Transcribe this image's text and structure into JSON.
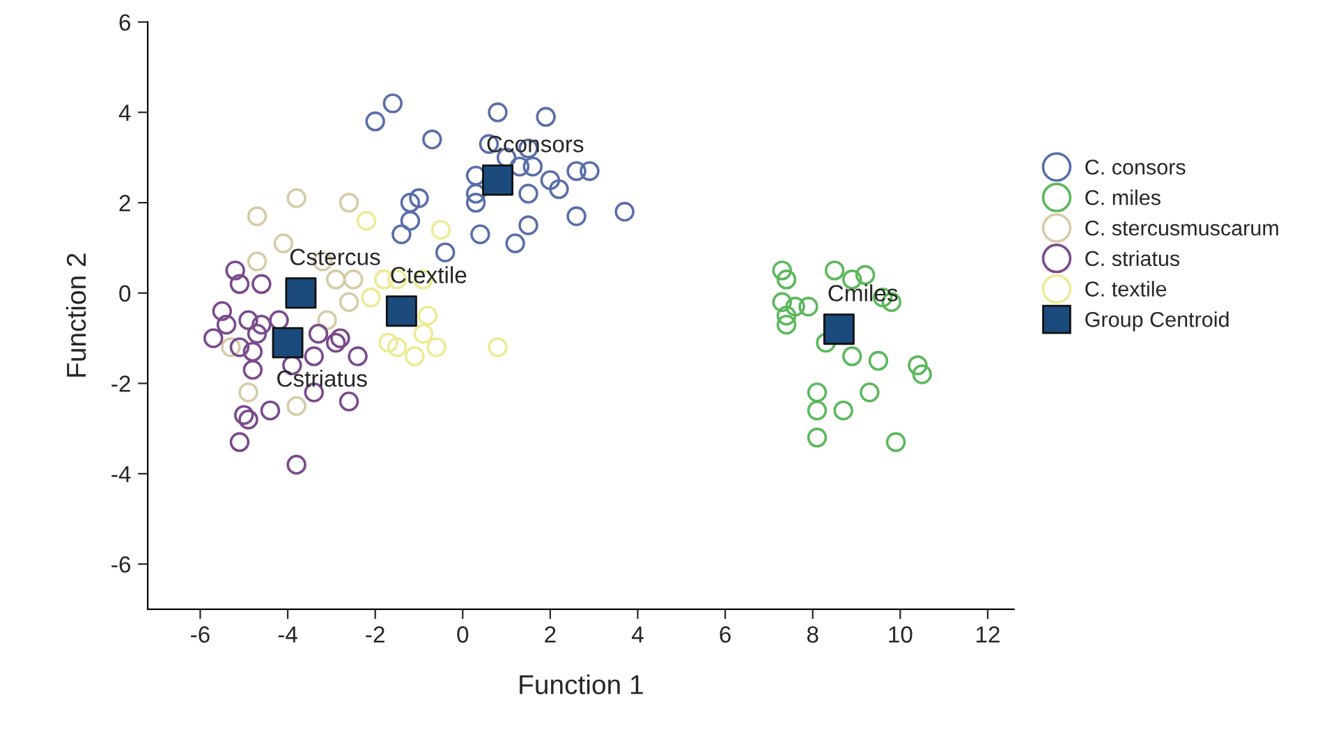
{
  "chart_data": {
    "type": "scatter",
    "xlabel": "Function 1",
    "ylabel": "Function 2",
    "xlim": [
      -7.2,
      12.6
    ],
    "ylim": [
      -7,
      6
    ],
    "xticks": [
      -6,
      -4,
      -2,
      0,
      2,
      4,
      6,
      8,
      10,
      12
    ],
    "yticks": [
      -6,
      -4,
      -2,
      0,
      2,
      4,
      6
    ],
    "grid": false,
    "legend": "right",
    "marker": "circle",
    "series": [
      {
        "name": "C. consors",
        "color": "#5a6ea8",
        "x": [
          -2.0,
          -1.6,
          -0.7,
          0.8,
          1.9,
          -1.2,
          -1.0,
          -1.2,
          -1.4,
          -0.4,
          0.3,
          0.3,
          0.3,
          0.4,
          0.6,
          1.0,
          1.3,
          1.5,
          1.6,
          1.5,
          1.5,
          1.2,
          2.0,
          2.2,
          2.6,
          2.9,
          2.6,
          3.7
        ],
        "values": [
          3.8,
          4.2,
          3.4,
          4.0,
          3.9,
          2.0,
          2.1,
          1.6,
          1.3,
          0.9,
          2.6,
          2.2,
          2.0,
          1.3,
          3.3,
          3.0,
          2.8,
          3.2,
          2.8,
          2.2,
          1.5,
          1.1,
          2.5,
          2.3,
          2.7,
          2.7,
          1.7,
          1.8
        ]
      },
      {
        "name": "C. miles",
        "color": "#5cb85c",
        "x": [
          7.3,
          7.4,
          7.3,
          7.4,
          7.4,
          7.6,
          7.9,
          8.5,
          8.9,
          9.2,
          9.6,
          9.8,
          8.3,
          8.9,
          9.5,
          9.3,
          10.4,
          10.5,
          8.1,
          8.1,
          8.7,
          8.1,
          9.9
        ],
        "values": [
          0.5,
          0.3,
          -0.2,
          -0.5,
          -0.7,
          -0.3,
          -0.3,
          0.5,
          0.3,
          0.4,
          -0.1,
          -0.2,
          -1.1,
          -1.4,
          -1.5,
          -2.2,
          -1.6,
          -1.8,
          -2.2,
          -2.6,
          -2.6,
          -3.2,
          -3.3
        ]
      },
      {
        "name": "C. stercusmuscarum",
        "color": "#d6cba8",
        "x": [
          -4.7,
          -3.8,
          -2.6,
          -4.7,
          -4.1,
          -3.2,
          -2.9,
          -2.5,
          -2.6,
          -5.3,
          -4.9,
          -3.8,
          -3.1
        ],
        "values": [
          1.7,
          2.1,
          2.0,
          0.7,
          1.1,
          0.7,
          0.3,
          0.3,
          -0.2,
          -1.2,
          -2.2,
          -2.5,
          -0.6
        ]
      },
      {
        "name": "C. striatus",
        "color": "#7a4a8c",
        "x": [
          -5.2,
          -5.1,
          -4.6,
          -5.5,
          -5.7,
          -5.4,
          -5.3,
          -5.0,
          -4.9,
          -4.7,
          -4.8,
          -4.8,
          -5.1,
          -4.9,
          -5.0,
          -4.4,
          -5.1,
          -3.8,
          -4.6,
          -4.2,
          -3.3,
          -3.4,
          -3.4,
          -2.9,
          -2.6,
          -2.8,
          -2.4,
          -3.9
        ],
        "values": [
          0.5,
          0.2,
          0.2,
          -0.4,
          -1.0,
          -0.7,
          null,
          null,
          -0.6,
          -0.9,
          -1.3,
          -1.7,
          -1.2,
          -2.8,
          -2.7,
          -2.6,
          -3.3,
          -3.8,
          -0.7,
          -0.6,
          -0.9,
          -1.4,
          -2.2,
          -1.1,
          -2.4,
          -1.0,
          -1.4,
          -1.6
        ]
      },
      {
        "name": "C. textile",
        "color": "#eeea96",
        "x": [
          -2.2,
          -0.5,
          -1.8,
          -1.5,
          -1.1,
          -0.8,
          -0.9,
          -0.6,
          -1.5,
          -1.1,
          -1.7,
          0.8,
          -2.1,
          -0.9
        ],
        "values": [
          1.6,
          1.4,
          0.3,
          0.3,
          null,
          -0.5,
          -0.9,
          -1.2,
          -1.2,
          -1.4,
          -1.1,
          -1.2,
          -0.1,
          0.3
        ]
      },
      {
        "name": "Group Centroid",
        "color": "#1b4a7c",
        "marker": "square",
        "x": [
          0.8,
          8.6,
          -3.7,
          -4.0,
          -1.4
        ],
        "values": [
          2.5,
          -0.8,
          0.0,
          -1.1,
          -0.4
        ]
      }
    ],
    "annotations": [
      {
        "text": "Cconsors",
        "x": 0.8,
        "y": 2.5
      },
      {
        "text": "Cmiles",
        "x": 8.6,
        "y": -0.8
      },
      {
        "text": "Cstercus",
        "x": -3.7,
        "y": 0.0
      },
      {
        "text": "Cstriatus",
        "x": -4.0,
        "y": -1.1
      },
      {
        "text": "Ctextile",
        "x": -1.4,
        "y": -0.4
      }
    ]
  }
}
